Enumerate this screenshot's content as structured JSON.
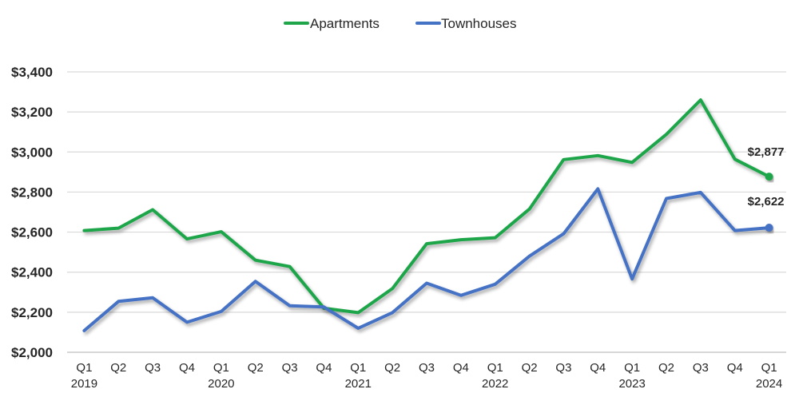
{
  "chart_data": {
    "type": "line",
    "title": "",
    "xlabel": "",
    "ylabel": "",
    "ylim": [
      2000,
      3400
    ],
    "yticks": [
      2000,
      2200,
      2400,
      2600,
      2800,
      3000,
      3200,
      3400
    ],
    "ytick_labels": [
      "$2,000",
      "$2,200",
      "$2,400",
      "$2,600",
      "$2,800",
      "$3,000",
      "$3,200",
      "$3,400"
    ],
    "grid": true,
    "legend_position": "top-center",
    "categories": [
      {
        "q": "Q1",
        "year": "2019"
      },
      {
        "q": "Q2",
        "year": ""
      },
      {
        "q": "Q3",
        "year": ""
      },
      {
        "q": "Q4",
        "year": ""
      },
      {
        "q": "Q1",
        "year": "2020"
      },
      {
        "q": "Q2",
        "year": ""
      },
      {
        "q": "Q3",
        "year": ""
      },
      {
        "q": "Q4",
        "year": ""
      },
      {
        "q": "Q1",
        "year": "2021"
      },
      {
        "q": "Q2",
        "year": ""
      },
      {
        "q": "Q3",
        "year": ""
      },
      {
        "q": "Q4",
        "year": ""
      },
      {
        "q": "Q1",
        "year": "2022"
      },
      {
        "q": "Q2",
        "year": ""
      },
      {
        "q": "Q3",
        "year": ""
      },
      {
        "q": "Q4",
        "year": ""
      },
      {
        "q": "Q1",
        "year": "2023"
      },
      {
        "q": "Q2",
        "year": ""
      },
      {
        "q": "Q3",
        "year": ""
      },
      {
        "q": "Q4",
        "year": ""
      },
      {
        "q": "Q1",
        "year": "2024"
      }
    ],
    "series": [
      {
        "name": "Apartments",
        "color": "#1fa64a",
        "values": [
          2608,
          2620,
          2712,
          2566,
          2602,
          2460,
          2428,
          2220,
          2198,
          2318,
          2542,
          2562,
          2572,
          2715,
          2962,
          2982,
          2948,
          3088,
          3260,
          2964,
          2877
        ],
        "end_label": "$2,877"
      },
      {
        "name": "Townhouses",
        "color": "#4472c4",
        "values": [
          2108,
          2254,
          2272,
          2150,
          2204,
          2354,
          2232,
          2226,
          2120,
          2198,
          2345,
          2284,
          2340,
          2480,
          2592,
          2816,
          2366,
          2768,
          2798,
          2608,
          2622
        ],
        "end_label": "$2,622"
      }
    ]
  }
}
